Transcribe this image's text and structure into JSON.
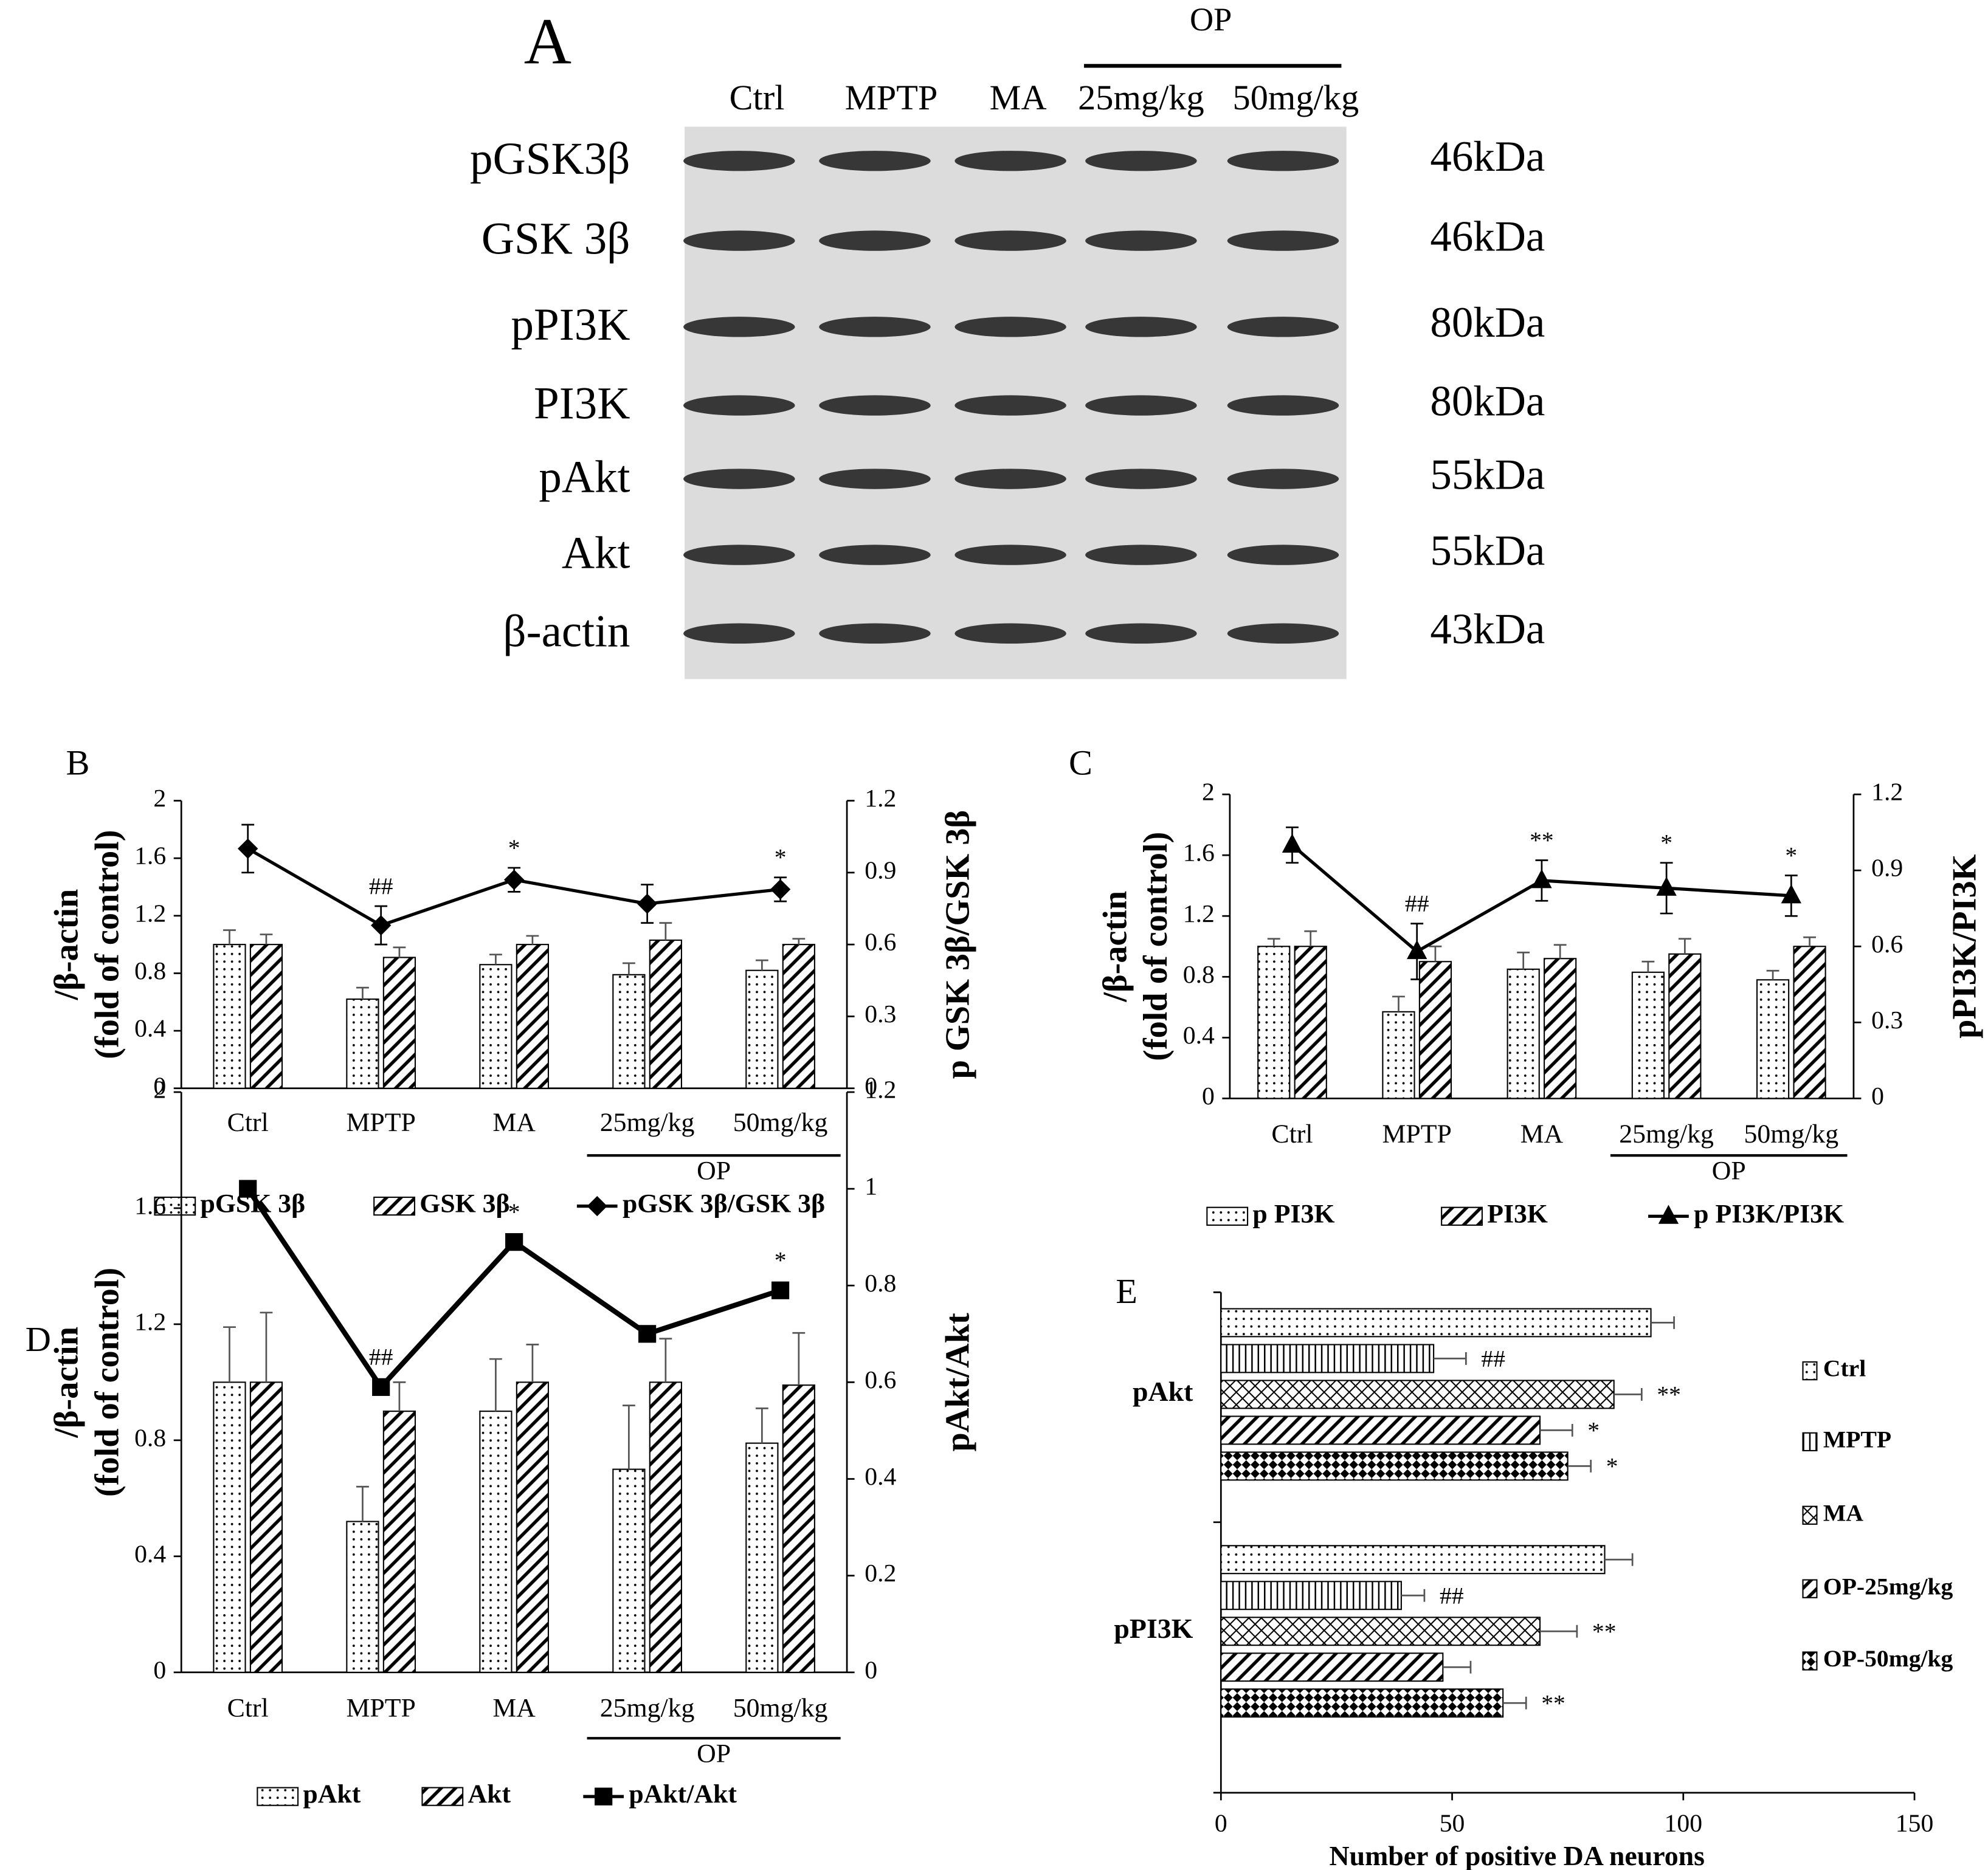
{
  "blot": {
    "panel": "A",
    "group_label": "OP",
    "lanes": [
      "Ctrl",
      "MPTP",
      "MA",
      "25mg/kg",
      "50mg/kg"
    ],
    "rows": [
      {
        "protein": "pGSK3β",
        "size": "46kDa"
      },
      {
        "protein": "GSK 3β",
        "size": "46kDa"
      },
      {
        "protein": "pPI3K",
        "size": "80kDa"
      },
      {
        "protein": "PI3K",
        "size": "80kDa"
      },
      {
        "protein": "pAkt",
        "size": "55kDa"
      },
      {
        "protein": "Akt",
        "size": "55kDa"
      },
      {
        "protein": "β-actin",
        "size": "43kDa"
      }
    ]
  },
  "chart_data": [
    {
      "type": "bar_line",
      "panel": "B",
      "categories": [
        "Ctrl",
        "MPTP",
        "MA",
        "25mg/kg",
        "50mg/kg"
      ],
      "group_label": "OP",
      "ylabel": [
        "/β-actin",
        "(fold of control)"
      ],
      "y2label": "p GSK 3β/GSK 3β",
      "ylim": [
        0,
        2
      ],
      "yticks": [
        0,
        0.4,
        0.8,
        1.2,
        1.6,
        2
      ],
      "y2lim": [
        0,
        1.2
      ],
      "y2ticks": [
        0,
        0.3,
        0.6,
        0.9,
        1.2
      ],
      "series": [
        {
          "name": "pGSK 3β",
          "pattern": "dots",
          "values": [
            1.0,
            0.62,
            0.86,
            0.79,
            0.82
          ],
          "errors": [
            0.1,
            0.08,
            0.07,
            0.08,
            0.07
          ]
        },
        {
          "name": "GSK 3β",
          "pattern": "hatch",
          "values": [
            1.0,
            0.91,
            1.0,
            1.03,
            1.0
          ],
          "errors": [
            0.07,
            0.07,
            0.06,
            0.12,
            0.04
          ]
        },
        {
          "name": "pGSK 3β/GSK 3β",
          "axis": "y2",
          "marker": "diamond",
          "color": "#000000",
          "values": [
            1.0,
            0.68,
            0.87,
            0.77,
            0.83
          ],
          "errors": [
            0.1,
            0.08,
            0.05,
            0.08,
            0.05
          ]
        }
      ],
      "annotations": [
        null,
        "##",
        "*",
        null,
        "*"
      ]
    },
    {
      "type": "bar_line",
      "panel": "C",
      "categories": [
        "Ctrl",
        "MPTP",
        "MA",
        "25mg/kg",
        "50mg/kg"
      ],
      "group_label": "OP",
      "ylabel": [
        "/β-actin",
        "(fold of control)"
      ],
      "y2label": "pPI3K/PI3K",
      "ylim": [
        0,
        2
      ],
      "yticks": [
        0,
        0.4,
        0.8,
        1.2,
        1.6,
        2
      ],
      "y2lim": [
        0,
        1.2
      ],
      "y2ticks": [
        0,
        0.3,
        0.6,
        0.9,
        1.2
      ],
      "series": [
        {
          "name": "p PI3K",
          "pattern": "dots",
          "values": [
            1.0,
            0.57,
            0.85,
            0.83,
            0.78
          ],
          "errors": [
            0.05,
            0.1,
            0.11,
            0.07,
            0.06
          ]
        },
        {
          "name": "PI3K",
          "pattern": "hatch",
          "values": [
            1.0,
            0.9,
            0.92,
            0.95,
            1.0
          ],
          "errors": [
            0.1,
            0.1,
            0.09,
            0.1,
            0.06
          ]
        },
        {
          "name": "p PI3K/PI3K",
          "axis": "y2",
          "marker": "triangle",
          "color": "#000000",
          "values": [
            1.0,
            0.58,
            0.86,
            0.83,
            0.8
          ],
          "errors": [
            0.07,
            0.11,
            0.08,
            0.1,
            0.08
          ]
        }
      ],
      "annotations": [
        null,
        "##",
        "**",
        "*",
        "*"
      ]
    },
    {
      "type": "bar_line",
      "panel": "D",
      "categories": [
        "Ctrl",
        "MPTP",
        "MA",
        "25mg/kg",
        "50mg/kg"
      ],
      "group_label": "OP",
      "ylabel": [
        "/β-actin",
        "(fold of control)"
      ],
      "y2label": "pAkt/Akt",
      "ylim": [
        0,
        2
      ],
      "yticks": [
        0,
        0.4,
        0.8,
        1.2,
        1.6,
        2
      ],
      "y2lim": [
        0,
        1.2
      ],
      "y2ticks": [
        0,
        0.2,
        0.4,
        0.6,
        0.8,
        1,
        1.2
      ],
      "series": [
        {
          "name": "pAkt",
          "pattern": "dots",
          "values": [
            1.0,
            0.52,
            0.9,
            0.7,
            0.79
          ],
          "errors": [
            0.19,
            0.12,
            0.18,
            0.22,
            0.12
          ]
        },
        {
          "name": "Akt",
          "pattern": "hatch",
          "values": [
            1.0,
            0.9,
            1.0,
            1.0,
            0.99
          ],
          "errors": [
            0.24,
            0.1,
            0.13,
            0.15,
            0.18
          ]
        },
        {
          "name": "pAkt/Akt",
          "axis": "y2",
          "marker": "square",
          "color": "#000000",
          "values": [
            1.0,
            0.59,
            0.89,
            0.7,
            0.79
          ]
        }
      ],
      "annotations": [
        null,
        "##",
        "*",
        null,
        "*"
      ]
    },
    {
      "type": "barh",
      "panel": "E",
      "categories": [
        "pAkt",
        "pPI3K"
      ],
      "xlabel": "Number of positive DA neurons",
      "xlim": [
        0,
        150
      ],
      "xticks": [
        0,
        50,
        100,
        150
      ],
      "series": [
        {
          "name": "Ctrl",
          "pattern": "dots",
          "values": [
            93,
            83
          ],
          "errors": [
            5,
            6
          ]
        },
        {
          "name": "MPTP",
          "pattern": "vlines",
          "values": [
            46,
            39
          ],
          "errors": [
            7,
            5
          ],
          "annotations": [
            "##",
            "##"
          ]
        },
        {
          "name": "MA",
          "pattern": "cross",
          "values": [
            85,
            69
          ],
          "errors": [
            6,
            8
          ],
          "annotations": [
            "**",
            "**"
          ]
        },
        {
          "name": "OP-25mg/kg",
          "pattern": "hatch",
          "values": [
            69,
            48
          ],
          "errors": [
            7,
            6
          ],
          "annotations": [
            "*",
            null
          ]
        },
        {
          "name": "OP-50mg/kg",
          "pattern": "check",
          "values": [
            75,
            61
          ],
          "errors": [
            5,
            5
          ],
          "annotations": [
            "*",
            "**"
          ]
        }
      ]
    }
  ]
}
